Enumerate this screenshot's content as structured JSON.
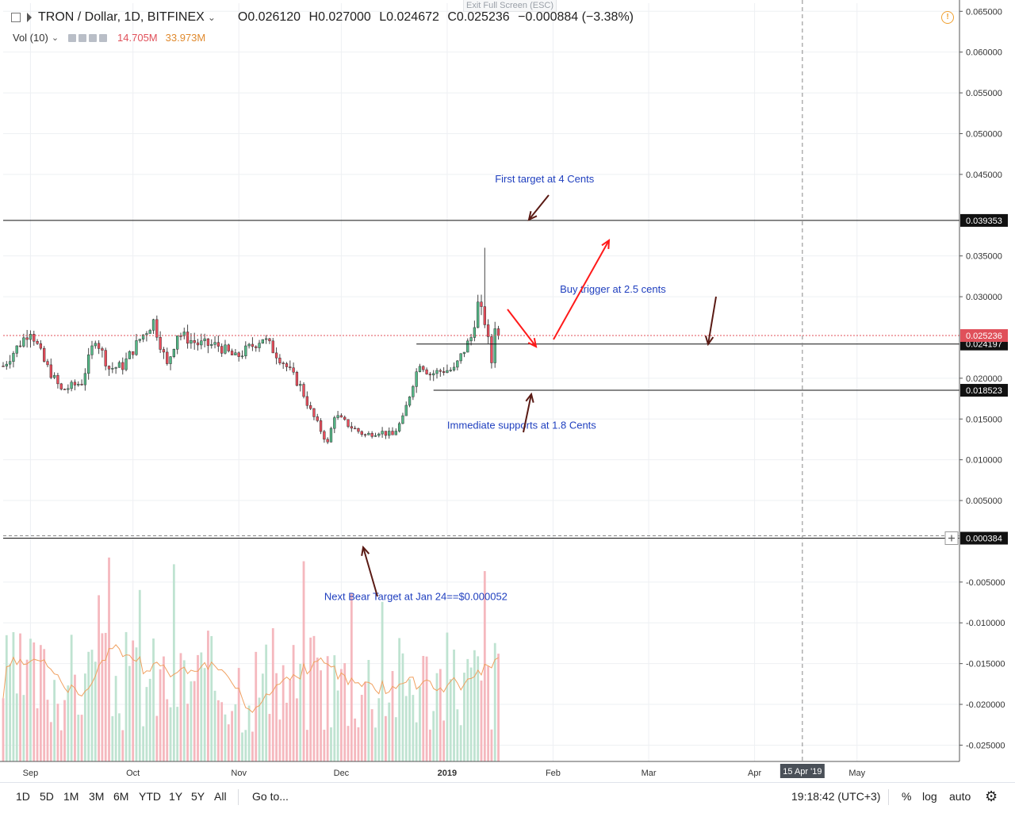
{
  "header": {
    "title": "TRON / Dollar, 1D, BITFINEX",
    "ohlc": {
      "open": "O0.026120",
      "high": "H0.027000",
      "low": "L0.024672",
      "close": "C0.025236",
      "change": "−0.000884 (−3.38%)"
    },
    "volume": {
      "label": "Vol (10)",
      "value_a": "14.705M",
      "value_b": "33.973M"
    },
    "exit_fullscreen": "Exit Full Screen (ESC)"
  },
  "toolbar": {
    "ranges": [
      "1D",
      "5D",
      "1M",
      "3M",
      "6M",
      "YTD",
      "1Y",
      "5Y",
      "All"
    ],
    "goto": "Go to...",
    "clock": "19:18:42 (UTC+3)",
    "percent": "%",
    "log": "log",
    "auto": "auto"
  },
  "colors": {
    "up": "#53b987",
    "down": "#eb4d5c",
    "up_vol": "#bfe3d1",
    "down_vol": "#f5b8be",
    "annotation_text": "#1f3fbf",
    "arrow_red": "#ff1a1a",
    "arrow_dark": "#5a1a14",
    "price_line": "#e0505a"
  },
  "chart_data": {
    "type": "candlestick",
    "symbol": "TRON / Dollar",
    "interval": "1D",
    "exchange": "BITFINEX",
    "y_axis": {
      "min": -0.027,
      "max": 0.066,
      "ticks": [
        0.065,
        0.06,
        0.055,
        0.05,
        0.045,
        0.035,
        0.03,
        0.02,
        0.015,
        0.01,
        0.005,
        -0.005,
        -0.01,
        -0.015,
        -0.02,
        -0.025
      ],
      "tick_labels": [
        "0.065000",
        "0.060000",
        "0.055000",
        "0.050000",
        "0.045000",
        "0.035000",
        "0.030000",
        "0.020000",
        "0.015000",
        "0.010000",
        "0.005000",
        "-0.005000",
        "-0.010000",
        "-0.015000",
        "-0.020000",
        "-0.025000"
      ]
    },
    "x_axis": {
      "start_date": "2018-08-24",
      "end_date": "2019-05-31",
      "ticks": [
        {
          "label": "Sep",
          "date": "2018-09-01"
        },
        {
          "label": "Oct",
          "date": "2018-10-01"
        },
        {
          "label": "Nov",
          "date": "2018-11-01"
        },
        {
          "label": "Dec",
          "date": "2018-12-01"
        },
        {
          "label": "2019",
          "date": "2019-01-01"
        },
        {
          "label": "Feb",
          "date": "2019-02-01"
        },
        {
          "label": "Mar",
          "date": "2019-03-01"
        },
        {
          "label": "Apr",
          "date": "2019-04-01"
        },
        {
          "label": "May",
          "date": "2019-05-01"
        }
      ],
      "crosshair_label": "15 Apr '19",
      "crosshair_date": "2019-04-15"
    },
    "current_price": {
      "value": 0.025236,
      "label": "0.025236"
    },
    "levels": [
      {
        "value": 0.039353,
        "label": "0.039353",
        "from_date": "2018-08-24"
      },
      {
        "value": 0.024197,
        "label": "0.024197",
        "from_date": "2018-12-23"
      },
      {
        "value": 0.018523,
        "label": "0.018523",
        "from_date": "2018-12-28"
      },
      {
        "value": 0.000384,
        "label": "0.000384",
        "from_date": "2018-08-24"
      }
    ],
    "close_series": [
      {
        "date": "2018-08-24",
        "close": 0.0215
      },
      {
        "date": "2018-09-01",
        "close": 0.026
      },
      {
        "date": "2018-09-05",
        "close": 0.022
      },
      {
        "date": "2018-09-10",
        "close": 0.0185
      },
      {
        "date": "2018-09-16",
        "close": 0.0195
      },
      {
        "date": "2018-09-20",
        "close": 0.025
      },
      {
        "date": "2018-09-24",
        "close": 0.0212
      },
      {
        "date": "2018-09-28",
        "close": 0.0215
      },
      {
        "date": "2018-10-03",
        "close": 0.0248
      },
      {
        "date": "2018-10-07",
        "close": 0.027
      },
      {
        "date": "2018-10-11",
        "close": 0.0215
      },
      {
        "date": "2018-10-14",
        "close": 0.0255
      },
      {
        "date": "2018-10-20",
        "close": 0.0242
      },
      {
        "date": "2018-10-26",
        "close": 0.024
      },
      {
        "date": "2018-10-31",
        "close": 0.0225
      },
      {
        "date": "2018-11-05",
        "close": 0.024
      },
      {
        "date": "2018-11-08",
        "close": 0.025
      },
      {
        "date": "2018-11-14",
        "close": 0.022
      },
      {
        "date": "2018-11-19",
        "close": 0.019
      },
      {
        "date": "2018-11-22",
        "close": 0.016
      },
      {
        "date": "2018-11-27",
        "close": 0.012
      },
      {
        "date": "2018-11-29",
        "close": 0.0155
      },
      {
        "date": "2018-12-04",
        "close": 0.014
      },
      {
        "date": "2018-12-08",
        "close": 0.013
      },
      {
        "date": "2018-12-12",
        "close": 0.0135
      },
      {
        "date": "2018-12-16",
        "close": 0.013
      },
      {
        "date": "2018-12-19",
        "close": 0.015
      },
      {
        "date": "2018-12-22",
        "close": 0.0195
      },
      {
        "date": "2018-12-24",
        "close": 0.022
      },
      {
        "date": "2018-12-27",
        "close": 0.0205
      },
      {
        "date": "2018-12-31",
        "close": 0.021
      },
      {
        "date": "2019-01-03",
        "close": 0.021
      },
      {
        "date": "2019-01-06",
        "close": 0.0235
      },
      {
        "date": "2019-01-08",
        "close": 0.025
      },
      {
        "date": "2019-01-10",
        "close": 0.029
      },
      {
        "date": "2019-01-12",
        "close": 0.027
      },
      {
        "date": "2019-01-14",
        "close": 0.022
      },
      {
        "date": "2019-01-15",
        "close": 0.0266
      },
      {
        "date": "2019-01-16",
        "close": 0.025236
      }
    ],
    "volume_series": {
      "label": "Vol (10)",
      "values": [
        14.705,
        33.973
      ]
    },
    "annotations": [
      {
        "text": "First target at 4 Cents",
        "value": 0.044
      },
      {
        "text": "Buy trigger at 2.5 cents",
        "value": 0.0305
      },
      {
        "text": "Immediate supports at 1.8 Cents",
        "value": 0.0138
      },
      {
        "text": "Next Bear Target at Jan 24==$0.000052",
        "value": -0.0072
      }
    ]
  }
}
